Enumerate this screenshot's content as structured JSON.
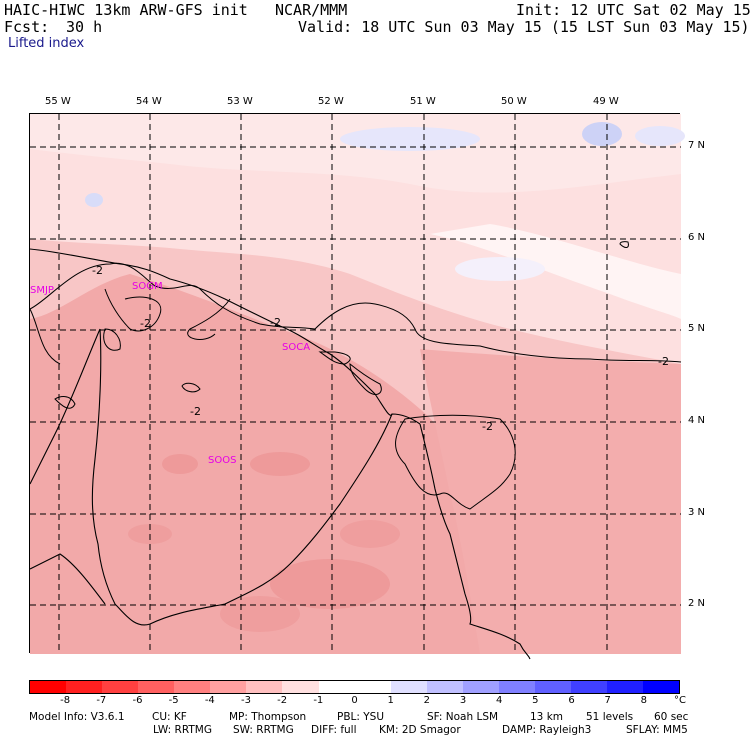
{
  "header": {
    "model_line": "HAIC-HIWC 13km ARW-GFS init",
    "org": "NCAR/MMM",
    "init": "Init: 12 UTC Sat 02 May 15",
    "fcst_label": "Fcst:",
    "fcst_value": "30 h",
    "valid": "Valid: 18 UTC Sun 03 May 15 (15 LST Sun 03 May 15)",
    "field": "Lifted index"
  },
  "lon_labels": [
    "55 W",
    "54 W",
    "53 W",
    "52 W",
    "51 W",
    "50 W",
    "49 W"
  ],
  "lat_labels": [
    "7 N",
    "6 N",
    "5 N",
    "4 N",
    "3 N",
    "2 N"
  ],
  "stations": [
    "SMJP",
    "SOGM",
    "SOCA",
    "SOOS"
  ],
  "contour_labels": [
    "-2",
    "-2",
    "-2",
    "-2",
    "-2",
    "-2"
  ],
  "colorbar": {
    "labels": [
      "-8",
      "-7",
      "-6",
      "-5",
      "-4",
      "-3",
      "-2",
      "-1",
      "0",
      "1",
      "2",
      "3",
      "4",
      "5",
      "6",
      "7",
      "8"
    ],
    "unit": "°C",
    "colors": [
      "#ff0000",
      "#ff2020",
      "#ff4040",
      "#ff6060",
      "#ff8080",
      "#ffa0a0",
      "#ffc0c0",
      "#ffe0e0",
      "#ffffff",
      "#ffffff",
      "#e0e0ff",
      "#c0c0ff",
      "#a0a0ff",
      "#8080ff",
      "#6060ff",
      "#4040ff",
      "#2020ff",
      "#0000ff"
    ]
  },
  "footer": {
    "line1": [
      "Model Info: V3.6.1",
      "CU: KF",
      "MP: Thompson",
      "PBL: YSU",
      "SF: Noah LSM",
      "13 km",
      "51 levels",
      "60 sec"
    ],
    "line2": [
      "LW: RRTMG",
      "SW: RRTMG",
      "DIFF: full",
      "KM: 2D Smagor",
      "DAMP: Rayleigh3",
      "SFLAY: MM5"
    ]
  }
}
